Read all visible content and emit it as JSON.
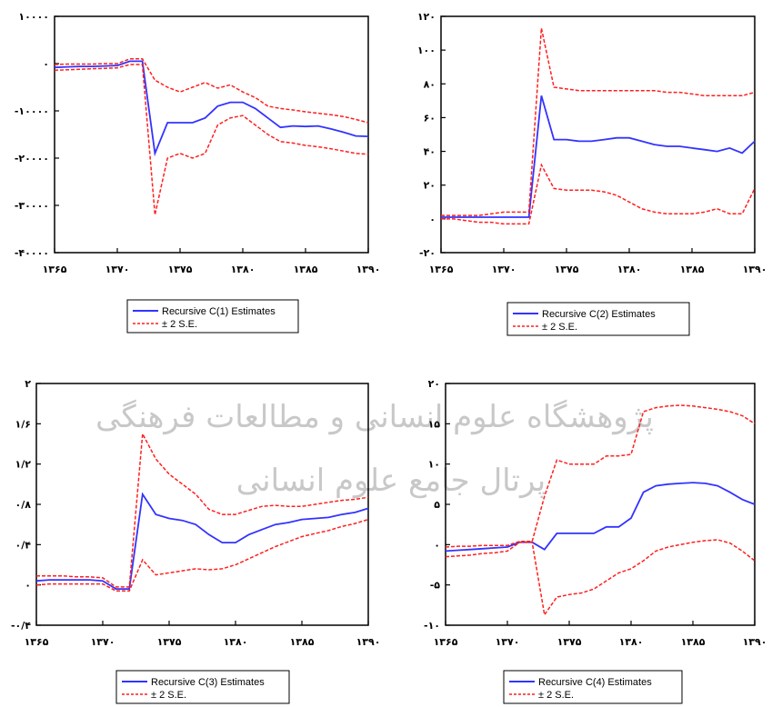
{
  "watermark": {
    "text_line1": "پژوهشگاه علوم انسانی و مطالعات فرهنگی",
    "text_line2": "پرتال جامع علوم انسانی"
  },
  "colors": {
    "estimate": "#3333ff",
    "bands": "#ff1f1f",
    "axis": "#000000",
    "watermark": "#c8c8c8"
  },
  "chart_data": [
    {
      "type": "line",
      "x_ticks": [
        "۱۳۶۵",
        "۱۳۷۰",
        "۱۳۷۵",
        "۱۳۸۰",
        "۱۳۸۵",
        "۱۳۹۰"
      ],
      "xlim": [
        1365,
        1390
      ],
      "y_ticks": [
        {
          "value": 10000,
          "label": "۱۰۰۰۰"
        },
        {
          "value": 0,
          "label": "۰"
        },
        {
          "value": -10000,
          "label": "-۱۰۰۰۰"
        },
        {
          "value": -20000,
          "label": "-۲۰۰۰۰"
        },
        {
          "value": -30000,
          "label": "-۳۰۰۰۰"
        },
        {
          "value": -40000,
          "label": "-۴۰۰۰۰"
        }
      ],
      "ylim": [
        -40000,
        10000
      ],
      "x": [
        1365,
        1366,
        1367,
        1368,
        1369,
        1370,
        1371,
        1372,
        1373,
        1374,
        1375,
        1376,
        1377,
        1378,
        1379,
        1380,
        1381,
        1382,
        1383,
        1384,
        1385,
        1386,
        1387,
        1388,
        1389,
        1390
      ],
      "series": [
        {
          "name": "Recursive C(1) Estimates",
          "style": "solid",
          "values": [
            -800,
            -700,
            -600,
            -600,
            -500,
            -400,
            500,
            500,
            -19000,
            -12500,
            -12500,
            -12500,
            -11500,
            -9000,
            -8200,
            -8200,
            -9500,
            -11500,
            -13500,
            -13200,
            -13300,
            -13200,
            -13800,
            -14500,
            -15300,
            -15400
          ]
        },
        {
          "name": "± 2 S.E.",
          "style": "dash",
          "values": [
            -200,
            -100,
            -100,
            -100,
            0,
            0,
            1000,
            1000,
            -3500,
            -5000,
            -6000,
            -5000,
            -4000,
            -5200,
            -4500,
            -6000,
            -7200,
            -9000,
            -9500,
            -9800,
            -10200,
            -10500,
            -10800,
            -11200,
            -11800,
            -12500
          ]
        },
        {
          "name": "± 2 S.E.",
          "style": "dash",
          "values": [
            -1400,
            -1300,
            -1200,
            -1100,
            -1000,
            -900,
            -200,
            -200,
            -32000,
            -20000,
            -19000,
            -20000,
            -19000,
            -13000,
            -11500,
            -11000,
            -13000,
            -15000,
            -16500,
            -16800,
            -17300,
            -17600,
            -18000,
            -18500,
            -19000,
            -19200
          ]
        }
      ],
      "legend": [
        "Recursive C(1) Estimates",
        "± 2 S.E."
      ]
    },
    {
      "type": "line",
      "x_ticks": [
        "۱۳۶۵",
        "۱۳۷۰",
        "۱۳۷۵",
        "۱۳۸۰",
        "۱۳۸۵",
        "۱۳۹۰"
      ],
      "xlim": [
        1365,
        1390
      ],
      "y_ticks": [
        {
          "value": 120,
          "label": "۱۲۰"
        },
        {
          "value": 100,
          "label": "۱۰۰"
        },
        {
          "value": 80,
          "label": "۸۰"
        },
        {
          "value": 60,
          "label": "۶۰"
        },
        {
          "value": 40,
          "label": "۴۰"
        },
        {
          "value": 20,
          "label": "۲۰"
        },
        {
          "value": 0,
          "label": "۰"
        },
        {
          "value": -20,
          "label": "-۲۰"
        }
      ],
      "ylim": [
        -20,
        120
      ],
      "x": [
        1365,
        1366,
        1367,
        1368,
        1369,
        1370,
        1371,
        1372,
        1373,
        1374,
        1375,
        1376,
        1377,
        1378,
        1379,
        1380,
        1381,
        1382,
        1383,
        1384,
        1385,
        1386,
        1387,
        1388,
        1389,
        1390
      ],
      "series": [
        {
          "name": "Recursive C(2) Estimates",
          "style": "solid",
          "values": [
            1,
            1,
            1,
            1,
            1,
            1,
            1,
            1,
            73,
            47,
            47,
            46,
            46,
            47,
            48,
            48,
            46,
            44,
            43,
            43,
            42,
            41,
            40,
            42,
            39,
            46
          ]
        },
        {
          "name": "± 2 S.E.",
          "style": "dash",
          "values": [
            2,
            2,
            2,
            2,
            3,
            4,
            4,
            4,
            113,
            78,
            77,
            76,
            76,
            76,
            76,
            76,
            76,
            76,
            75,
            75,
            74,
            73,
            73,
            73,
            73,
            75
          ]
        },
        {
          "name": "± 2 S.E.",
          "style": "dash",
          "values": [
            0,
            0,
            -1,
            -2,
            -2,
            -3,
            -3,
            -3,
            32,
            18,
            17,
            17,
            17,
            16,
            14,
            10,
            6,
            4,
            3,
            3,
            3,
            4,
            6,
            3,
            3,
            18
          ]
        }
      ],
      "legend": [
        "Recursive C(2) Estimates",
        "± 2 S.E."
      ]
    },
    {
      "type": "line",
      "x_ticks": [
        "۱۳۶۵",
        "۱۳۷۰",
        "۱۳۷۵",
        "۱۳۸۰",
        "۱۳۸۵",
        "۱۳۹۰"
      ],
      "xlim": [
        1365,
        1390
      ],
      "y_ticks": [
        {
          "value": 2.0,
          "label": "۲"
        },
        {
          "value": 1.6,
          "label": "۱/۶"
        },
        {
          "value": 1.2,
          "label": "۱/۲"
        },
        {
          "value": 0.8,
          "label": "۰/۸"
        },
        {
          "value": 0.4,
          "label": "۰/۴"
        },
        {
          "value": 0.0,
          "label": "۰"
        },
        {
          "value": -0.4,
          "label": "-۰/۴"
        }
      ],
      "ylim": [
        -0.4,
        2.0
      ],
      "x": [
        1365,
        1366,
        1367,
        1368,
        1369,
        1370,
        1371,
        1372,
        1373,
        1374,
        1375,
        1376,
        1377,
        1378,
        1379,
        1380,
        1381,
        1382,
        1383,
        1384,
        1385,
        1386,
        1387,
        1388,
        1389,
        1390
      ],
      "series": [
        {
          "name": "Recursive C(3) Estimates",
          "style": "solid",
          "values": [
            0.04,
            0.05,
            0.05,
            0.05,
            0.05,
            0.04,
            -0.04,
            -0.04,
            0.9,
            0.7,
            0.66,
            0.64,
            0.6,
            0.5,
            0.42,
            0.42,
            0.5,
            0.55,
            0.6,
            0.62,
            0.65,
            0.66,
            0.67,
            0.7,
            0.72,
            0.76
          ]
        },
        {
          "name": "± 2 S.E.",
          "style": "dash",
          "values": [
            0.09,
            0.09,
            0.09,
            0.08,
            0.08,
            0.07,
            -0.02,
            -0.02,
            1.5,
            1.25,
            1.1,
            1.0,
            0.9,
            0.75,
            0.7,
            0.7,
            0.74,
            0.78,
            0.79,
            0.78,
            0.78,
            0.8,
            0.82,
            0.84,
            0.85,
            0.87
          ]
        },
        {
          "name": "± 2 S.E.",
          "style": "dash",
          "values": [
            0.0,
            0.01,
            0.01,
            0.01,
            0.01,
            0.01,
            -0.06,
            -0.06,
            0.25,
            0.1,
            0.12,
            0.14,
            0.16,
            0.15,
            0.16,
            0.2,
            0.26,
            0.32,
            0.38,
            0.43,
            0.48,
            0.51,
            0.54,
            0.58,
            0.61,
            0.65
          ]
        }
      ],
      "legend": [
        "Recursive C(3) Estimates",
        "± 2 S.E."
      ]
    },
    {
      "type": "line",
      "x_ticks": [
        "۱۳۶۵",
        "۱۳۷۰",
        "۱۳۷۵",
        "۱۳۸۰",
        "۱۳۸۵",
        "۱۳۹۰"
      ],
      "xlim": [
        1365,
        1390
      ],
      "y_ticks": [
        {
          "value": 20,
          "label": "۲۰"
        },
        {
          "value": 15,
          "label": "۱۵"
        },
        {
          "value": 10,
          "label": "۱۰"
        },
        {
          "value": 5,
          "label": "۵"
        },
        {
          "value": 0,
          "label": "۰"
        },
        {
          "value": -5,
          "label": "-۵"
        },
        {
          "value": -10,
          "label": "-۱۰"
        }
      ],
      "ylim": [
        -10,
        20
      ],
      "x": [
        1365,
        1366,
        1367,
        1368,
        1369,
        1370,
        1371,
        1372,
        1373,
        1374,
        1375,
        1376,
        1377,
        1378,
        1379,
        1380,
        1381,
        1382,
        1383,
        1384,
        1385,
        1386,
        1387,
        1388,
        1389,
        1390
      ],
      "series": [
        {
          "name": "Recursive C(4) Estimates",
          "style": "solid",
          "values": [
            -0.8,
            -0.7,
            -0.6,
            -0.5,
            -0.4,
            -0.3,
            0.3,
            0.3,
            -0.6,
            1.4,
            1.4,
            1.4,
            1.4,
            2.2,
            2.2,
            3.3,
            6.5,
            7.3,
            7.5,
            7.6,
            7.7,
            7.6,
            7.3,
            6.5,
            5.6,
            5.0
          ]
        },
        {
          "name": "± 2 S.E.",
          "style": "dash",
          "values": [
            -0.3,
            -0.2,
            -0.2,
            -0.1,
            -0.1,
            -0.1,
            0.4,
            0.4,
            6.0,
            10.5,
            10.0,
            10.0,
            10.0,
            11.0,
            11.0,
            11.2,
            16.5,
            17.0,
            17.2,
            17.3,
            17.2,
            17.0,
            16.8,
            16.5,
            16.0,
            15.0
          ]
        },
        {
          "name": "± 2 S.E.",
          "style": "dash",
          "values": [
            -1.5,
            -1.4,
            -1.3,
            -1.1,
            -1.0,
            -0.8,
            0.3,
            0.3,
            -8.7,
            -6.5,
            -6.2,
            -6.0,
            -5.5,
            -4.5,
            -3.5,
            -3.0,
            -2.0,
            -0.8,
            -0.3,
            0.0,
            0.3,
            0.5,
            0.6,
            0.2,
            -0.8,
            -2.0
          ]
        }
      ],
      "legend": [
        "Recursive C(4) Estimates",
        "± 2 S.E."
      ]
    }
  ]
}
